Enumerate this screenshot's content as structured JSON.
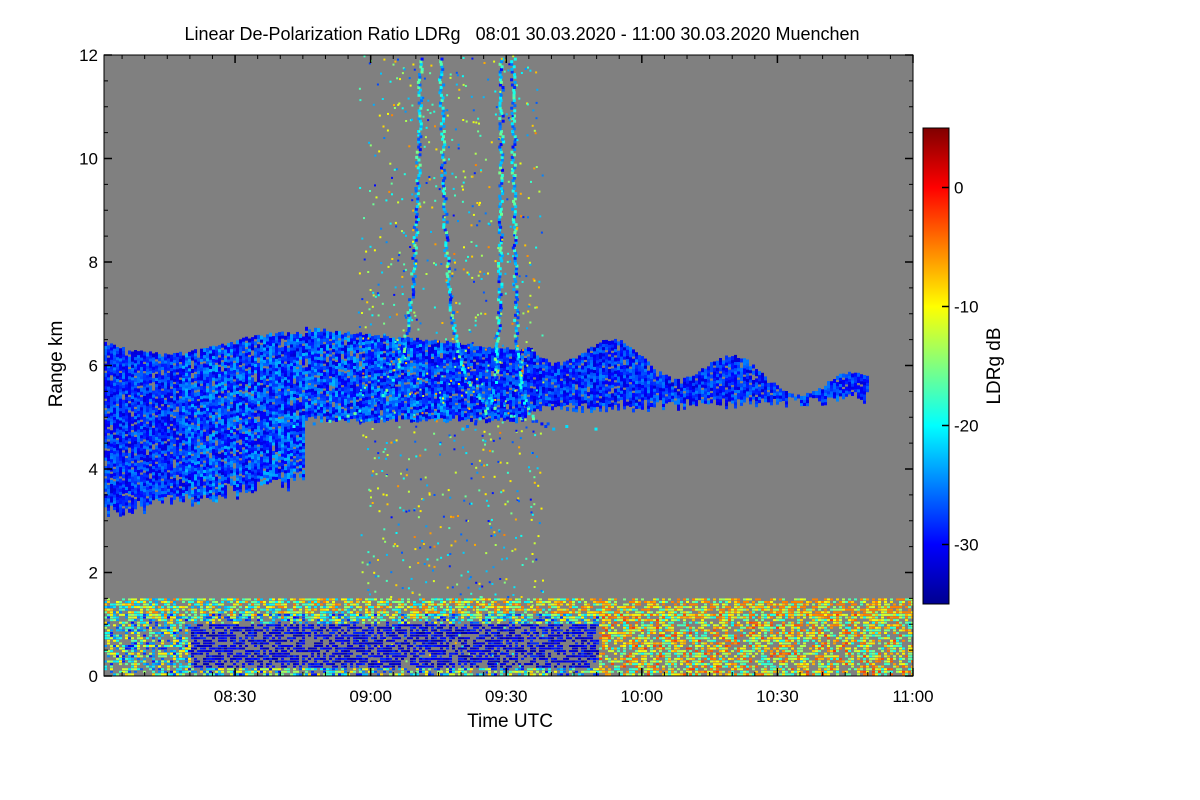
{
  "chart_data": {
    "type": "heatmap",
    "title": "Linear De-Polarization Ratio LDRg   08:01 30.03.2020 - 11:00 30.03.2020 Muenchen",
    "xlabel": "Time UTC",
    "ylabel": "Range km",
    "colorbar_label": "LDRg dB",
    "xlim": [
      "08:01",
      "11:00"
    ],
    "ylim": [
      0,
      12
    ],
    "x_ticks": [
      "08:30",
      "09:00",
      "09:30",
      "10:00",
      "10:30",
      "11:00"
    ],
    "y_ticks": [
      0,
      2,
      4,
      6,
      8,
      10,
      12
    ],
    "colorbar_range": [
      -35,
      5
    ],
    "colorbar_ticks": [
      0,
      -10,
      -20,
      -30
    ],
    "colormap": [
      "#00008f",
      "#0000ff",
      "#0080ff",
      "#00ffff",
      "#80ff80",
      "#ffff00",
      "#ff8000",
      "#ff0000",
      "#800000"
    ],
    "background_color": "#808080",
    "features": [
      {
        "name": "mid-level cloud layer",
        "time_range": [
          "08:01",
          "10:50"
        ],
        "range_km": [
          3.0,
          6.8
        ],
        "ldr_db": [
          -32,
          -24
        ]
      },
      {
        "name": "boundary layer band",
        "time_range": [
          "08:01",
          "11:00"
        ],
        "range_km": [
          1.1,
          1.5
        ],
        "ldr_db": [
          -25,
          -5
        ]
      },
      {
        "name": "near-surface echoes",
        "time_range": [
          "08:01",
          "11:00"
        ],
        "range_km": [
          0,
          1.2
        ],
        "ldr_db": [
          -33,
          -3
        ]
      },
      {
        "name": "fall streak arcs",
        "time_range": [
          "09:00",
          "09:35"
        ],
        "range_km": [
          4.8,
          12
        ],
        "ldr_db": [
          -30,
          -15
        ]
      }
    ]
  }
}
